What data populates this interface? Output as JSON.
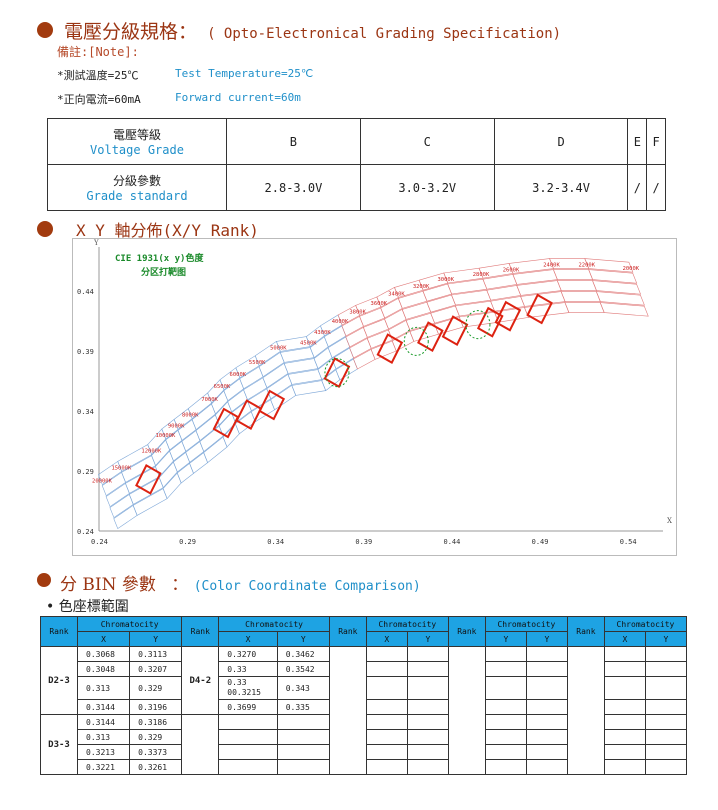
{
  "section1": {
    "title_cn": "電壓分級規格：",
    "title_en": "( Opto-Electronical Grading Specification)",
    "note": "備註:[Note]:",
    "cond1_cn": "*測試溫度=25℃",
    "cond1_en": "Test Temperature=25℃",
    "cond2_cn": "*正向電流=60mA",
    "cond2_en": "Forward current=60m"
  },
  "grade_table": {
    "row1_label_cn": "電壓等級",
    "row1_label_en": "Voltage Grade",
    "row2_label_cn": "分級參數",
    "row2_label_en": "Grade standard",
    "grades": [
      "B",
      "C",
      "D",
      "E",
      "F"
    ],
    "standards": [
      "2.8-3.0V",
      "3.0-3.2V",
      "3.2-3.4V",
      "/",
      "/"
    ]
  },
  "section2": {
    "title": "X Y 軸分佈(X/Y Rank)"
  },
  "chart_data": {
    "type": "scatter",
    "title": "CIE 1931(x y)色度",
    "subtitle": "分区打靶图",
    "xlabel": "X",
    "ylabel": "Y",
    "xlim": [
      0.24,
      0.56
    ],
    "ylim": [
      0.24,
      0.46
    ],
    "x_ticks": [
      "0.24",
      "0.29",
      "0.34",
      "0.39",
      "0.44",
      "0.49",
      "0.54"
    ],
    "y_ticks": [
      "0.44",
      "0.39",
      "0.34",
      "0.29",
      "0.24"
    ],
    "cct_labels": [
      "20000K",
      "15000K",
      "12000K",
      "10000K",
      "9000K",
      "8000K",
      "7000K",
      "6500K",
      "6000K",
      "5500K",
      "5000K",
      "4500K",
      "4300K",
      "4000K",
      "3800K",
      "3600K",
      "3400K",
      "3200K",
      "3000K",
      "2800K",
      "2600K",
      "2400K",
      "2200K",
      "2000K"
    ],
    "cct_points": [
      [
        0.244,
        0.277
      ],
      [
        0.255,
        0.288
      ],
      [
        0.272,
        0.302
      ],
      [
        0.28,
        0.315
      ],
      [
        0.287,
        0.323
      ],
      [
        0.295,
        0.332
      ],
      [
        0.306,
        0.345
      ],
      [
        0.313,
        0.356
      ],
      [
        0.322,
        0.366
      ],
      [
        0.333,
        0.376
      ],
      [
        0.345,
        0.388
      ],
      [
        0.362,
        0.392
      ],
      [
        0.37,
        0.401
      ],
      [
        0.38,
        0.41
      ],
      [
        0.39,
        0.418
      ],
      [
        0.402,
        0.425
      ],
      [
        0.412,
        0.433
      ],
      [
        0.426,
        0.439
      ],
      [
        0.44,
        0.445
      ],
      [
        0.46,
        0.449
      ],
      [
        0.477,
        0.453
      ],
      [
        0.5,
        0.457
      ],
      [
        0.52,
        0.457
      ],
      [
        0.545,
        0.454
      ]
    ]
  },
  "section3": {
    "title_cn": "分 BIN 參數",
    "colon": "：",
    "title_en": "(Color Coordinate Comparison)",
    "subtitle": "色座標範圍"
  },
  "bin_table": {
    "rank_label": "Rank",
    "chroma_label": "Chromatocity",
    "x_label": "X",
    "y_label": "Y",
    "group1": {
      "rank": "D2-3",
      "x": [
        "0.3068",
        "0.3048",
        "0.313",
        "0.3144"
      ],
      "y": [
        "0.3113",
        "0.3207",
        "0.329",
        "0.3196"
      ]
    },
    "group2": {
      "rank": "D3-3",
      "x": [
        "0.3144",
        "0.313",
        "0.3213",
        "0.3221"
      ],
      "y": [
        "0.3186",
        "0.329",
        "0.3373",
        "0.3261"
      ]
    },
    "group3": {
      "rank": "D4-2",
      "x": [
        "0.3270",
        "0.33",
        "0.33\n00.3215",
        "0.3699"
      ],
      "y": [
        "0.3462",
        "0.3542",
        "0.343",
        "0.335"
      ]
    }
  }
}
